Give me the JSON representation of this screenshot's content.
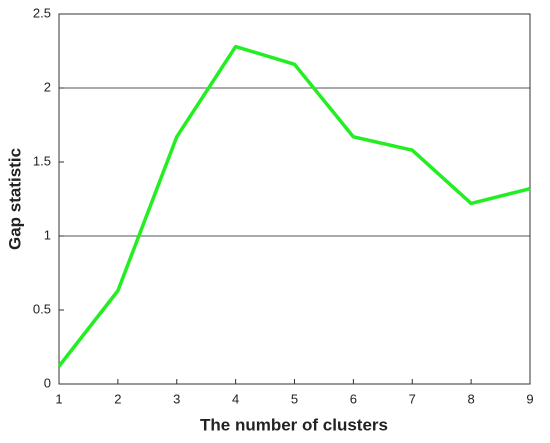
{
  "chart_data": {
    "type": "line",
    "x_label": "The number of clusters",
    "y_label": "Gap statistic",
    "x": [
      1,
      2,
      3,
      4,
      5,
      6,
      7,
      8,
      9
    ],
    "series": [
      {
        "name": "Gap statistic",
        "color": "#22ee22",
        "values": [
          0.12,
          0.63,
          1.67,
          2.28,
          2.16,
          1.67,
          1.58,
          1.22,
          1.32
        ]
      }
    ],
    "xlim": [
      1,
      9
    ],
    "xticks": [
      1,
      2,
      3,
      4,
      5,
      6,
      7,
      8,
      9
    ],
    "ylim": [
      0,
      2.5
    ],
    "yticks": [
      0,
      0.5,
      1,
      1.5,
      2,
      2.5
    ],
    "grid_y": [
      1,
      2
    ]
  }
}
